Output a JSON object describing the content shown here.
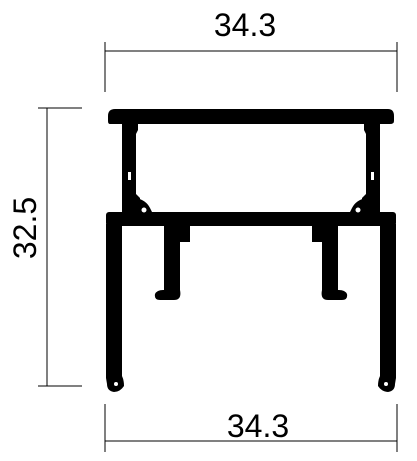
{
  "drawing": {
    "top_width_label": "34.3",
    "bottom_width_label": "34.3",
    "height_label": "32.5",
    "profile_color": "#000000",
    "background_color": "#ffffff"
  }
}
